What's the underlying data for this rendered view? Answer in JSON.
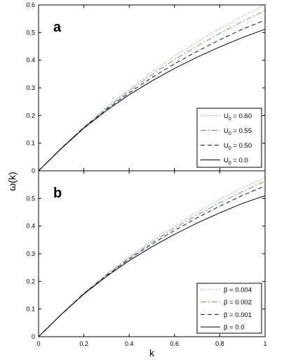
{
  "chart_data": [
    {
      "type": "line",
      "panel_label": "a",
      "xlabel": "k",
      "ylabel": "ω(k)",
      "xlim": [
        0,
        1
      ],
      "ylim": [
        0,
        0.6
      ],
      "xticks": [
        "0",
        "0.2",
        "0.4",
        "0.6",
        "0.8",
        "1"
      ],
      "yticks": [
        "0",
        "0.1",
        "0.2",
        "0.3",
        "0.4",
        "0.5",
        "0.6"
      ],
      "legend_position": "lower-right",
      "x": [
        0,
        0.1,
        0.2,
        0.3,
        0.4,
        0.5,
        0.6,
        0.7,
        0.8,
        0.9,
        1.0
      ],
      "series": [
        {
          "name": "U_0 = 0.60",
          "legend_base": "U",
          "legend_sub": "0",
          "legend_rest": " = 0.60",
          "color": "#ff44ff",
          "style": "dotted",
          "values": [
            0,
            0.082,
            0.16,
            0.23,
            0.295,
            0.357,
            0.414,
            0.466,
            0.514,
            0.559,
            0.6
          ]
        },
        {
          "name": "U_0 = 0.55",
          "legend_base": "U",
          "legend_sub": "0",
          "legend_rest": " = 0.55",
          "color": "#44cc00",
          "style": "dashdot",
          "values": [
            0,
            0.082,
            0.158,
            0.226,
            0.289,
            0.348,
            0.402,
            0.451,
            0.497,
            0.54,
            0.58
          ]
        },
        {
          "name": "U_0 = 0.50",
          "legend_base": "U",
          "legend_sub": "0",
          "legend_rest": " = 0.50",
          "color": "#0000ff",
          "style": "dashed",
          "values": [
            0,
            0.081,
            0.156,
            0.222,
            0.282,
            0.337,
            0.387,
            0.432,
            0.474,
            0.512,
            0.545
          ]
        },
        {
          "name": "U_0 = 0.0",
          "legend_base": "U",
          "legend_sub": "0",
          "legend_rest": " = 0.0",
          "color": "#000000",
          "style": "solid",
          "values": [
            0,
            0.08,
            0.154,
            0.218,
            0.275,
            0.325,
            0.37,
            0.411,
            0.448,
            0.482,
            0.512
          ]
        }
      ]
    },
    {
      "type": "line",
      "panel_label": "b",
      "xlabel": "k",
      "ylabel": "ω(k)",
      "xlim": [
        0,
        1
      ],
      "ylim": [
        0,
        0.6
      ],
      "xticks": [
        "0",
        "0.2",
        "0.4",
        "0.6",
        "0.8",
        "1"
      ],
      "yticks": [
        "0",
        "0.1",
        "0.2",
        "0.3",
        "0.4",
        "0.5",
        ""
      ],
      "legend_position": "lower-right",
      "x": [
        0,
        0.1,
        0.2,
        0.3,
        0.4,
        0.5,
        0.6,
        0.7,
        0.8,
        0.9,
        1.0
      ],
      "series": [
        {
          "name": "β = 0.004",
          "legend_base": "β",
          "legend_sub": "",
          "legend_rest": " = 0.004",
          "color": "#ff44ff",
          "style": "dotted",
          "values": [
            0,
            0.081,
            0.158,
            0.226,
            0.289,
            0.347,
            0.401,
            0.451,
            0.497,
            0.538,
            0.575
          ]
        },
        {
          "name": "β = 0.002",
          "legend_base": "β",
          "legend_sub": "",
          "legend_rest": " = 0.002",
          "color": "#44cc00",
          "style": "dashdot",
          "values": [
            0,
            0.081,
            0.157,
            0.224,
            0.285,
            0.341,
            0.393,
            0.44,
            0.484,
            0.525,
            0.562
          ]
        },
        {
          "name": "β = 0.001",
          "legend_base": "β",
          "legend_sub": "",
          "legend_rest": " = 0.001",
          "color": "#0000ff",
          "style": "dashed",
          "values": [
            0,
            0.08,
            0.156,
            0.221,
            0.281,
            0.335,
            0.384,
            0.43,
            0.472,
            0.511,
            0.545
          ]
        },
        {
          "name": "β = 0.0",
          "legend_base": "β",
          "legend_sub": "",
          "legend_rest": " = 0.0",
          "color": "#000000",
          "style": "solid",
          "values": [
            0,
            0.08,
            0.154,
            0.218,
            0.275,
            0.325,
            0.37,
            0.411,
            0.448,
            0.482,
            0.51
          ]
        }
      ]
    }
  ]
}
